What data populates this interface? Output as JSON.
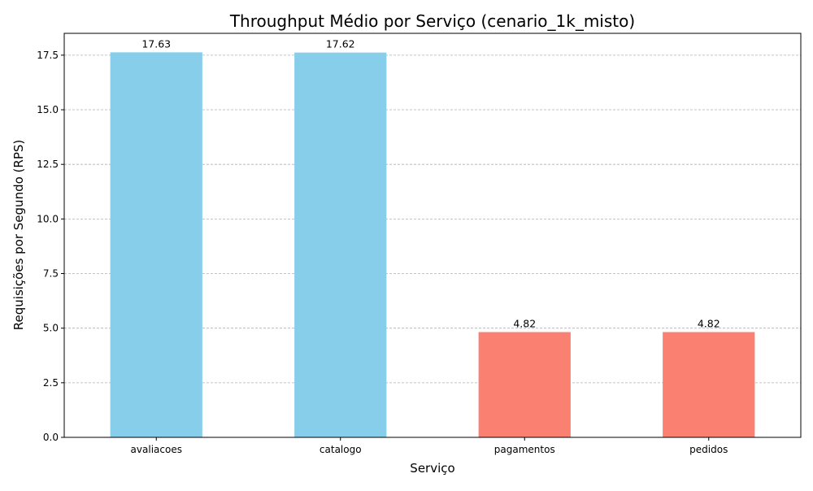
{
  "chart_data": {
    "type": "bar",
    "title": "Throughput Médio por Serviço (cenario_1k_misto)",
    "xlabel": "Serviço",
    "ylabel": "Requisições por Segundo (RPS)",
    "categories": [
      "avaliacoes",
      "catalogo",
      "pagamentos",
      "pedidos"
    ],
    "values": [
      17.63,
      17.62,
      4.82,
      4.82
    ],
    "data_labels": [
      "17.63",
      "17.62",
      "4.82",
      "4.82"
    ],
    "bar_colors": [
      "#87CEEB",
      "#87CEEB",
      "#FA8072",
      "#FA8072"
    ],
    "ylim": [
      0,
      18.5
    ],
    "yticks": [
      0,
      2.5,
      5,
      7.5,
      10,
      12.5,
      15,
      17.5
    ],
    "ytick_labels": [
      "0.0",
      "2.5",
      "5.0",
      "7.5",
      "10.0",
      "12.5",
      "15.0",
      "17.5"
    ],
    "grid": "y-dashed",
    "legend": "none"
  }
}
